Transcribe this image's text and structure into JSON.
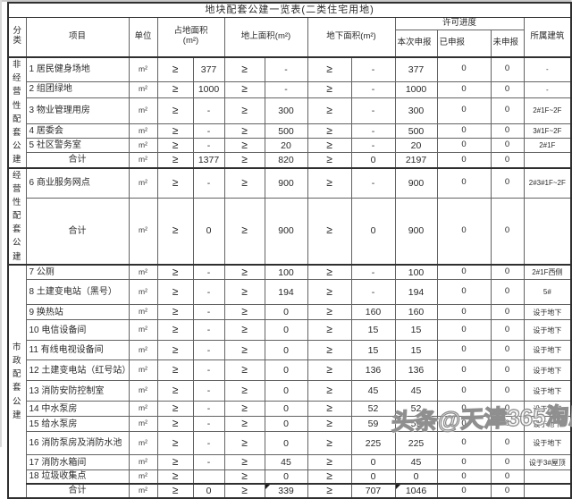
{
  "title": "地块配套公建一览表(二类住宅用地)",
  "watermark": "头条@天津365淘房",
  "header": {
    "category": "分类",
    "project": "项目",
    "unit": "单位",
    "land_area_line1": "占地面积",
    "land_area_line2": "(m²)",
    "above_area": "地上面积(m²)",
    "below_area": "地下面积(m²)",
    "permit_progress": "许可进度",
    "current_declare": "本次申报",
    "declared": "已申报",
    "not_declared": "未申报",
    "building": "所属建筑"
  },
  "sections": [
    {
      "category": "非经营性配套公建",
      "rows": [
        {
          "cells": [
            "1 居民健身场地",
            "m²",
            "≥",
            "377",
            "≥",
            "-",
            "≥",
            "-",
            "377",
            "0",
            "0",
            "-"
          ]
        },
        {
          "cells": [
            "2 组团绿地",
            "m²",
            "≥",
            "1000",
            "≥",
            "-",
            "≥",
            "-",
            "1000",
            "0",
            "0",
            "-"
          ]
        },
        {
          "cells": [
            "3 物业管理用房",
            "m²",
            "≥",
            "-",
            "≥",
            "300",
            "≥",
            "-",
            "300",
            "0",
            "0",
            "2#1F~2F"
          ]
        },
        {
          "cells": [
            "4 居委会",
            "m²",
            "≥",
            "-",
            "≥",
            "500",
            "≥",
            "-",
            "500",
            "0",
            "0",
            "3#1F~2F"
          ]
        },
        {
          "cells": [
            "5 社区警务室",
            "m²",
            "≥",
            "-",
            "≥",
            "20",
            "≥",
            "-",
            "20",
            "0",
            "0",
            "2#1F"
          ]
        },
        {
          "total": true,
          "cells": [
            "合计",
            "m²",
            "≥",
            "1377",
            "≥",
            "820",
            "≥",
            "0",
            "2197",
            "0",
            "0",
            ""
          ]
        }
      ]
    },
    {
      "category": "经营性配套公建",
      "rows": [
        {
          "cells": [
            "6 商业服务网点",
            "m²",
            "≥",
            "-",
            "≥",
            "900",
            "≥",
            "-",
            "900",
            "0",
            "0",
            "2#3#1F~2F"
          ]
        },
        {
          "total": true,
          "cells": [
            "合计",
            "m²",
            "≥",
            "0",
            "≥",
            "900",
            "≥",
            "0",
            "900",
            "0",
            "0",
            ""
          ]
        }
      ]
    },
    {
      "category": "市政配套公建",
      "rows": [
        {
          "cells": [
            "7 公厕",
            "m²",
            "≥",
            "-",
            "≥",
            "100",
            "≥",
            "-",
            "100",
            "0",
            "0",
            "2#1F西侧"
          ]
        },
        {
          "cells": [
            "8 土建变电站（黑号）",
            "m²",
            "≥",
            "-",
            "≥",
            "194",
            "≥",
            "-",
            "194",
            "0",
            "0",
            "5#"
          ]
        },
        {
          "cells": [
            "9 换热站",
            "m²",
            "≥",
            "-",
            "≥",
            "0",
            "≥",
            "160",
            "160",
            "0",
            "0",
            "设于地下"
          ]
        },
        {
          "cells": [
            "10 电信设备间",
            "m²",
            "≥",
            "-",
            "≥",
            "0",
            "≥",
            "15",
            "15",
            "0",
            "0",
            "设于地下"
          ]
        },
        {
          "cells": [
            "11 有线电视设备间",
            "m²",
            "≥",
            "-",
            "≥",
            "0",
            "≥",
            "15",
            "15",
            "0",
            "0",
            "设于地下"
          ]
        },
        {
          "cells": [
            "12 土建变电站（红号站）",
            "m²",
            "≥",
            "-",
            "≥",
            "0",
            "≥",
            "136",
            "136",
            "0",
            "0",
            "设于地下"
          ]
        },
        {
          "cells": [
            "13 消防安防控制室",
            "m²",
            "≥",
            "-",
            "≥",
            "0",
            "≥",
            "45",
            "45",
            "0",
            "0",
            "设于地下"
          ]
        },
        {
          "cells": [
            "14 中水泵房",
            "m²",
            "≥",
            "-",
            "≥",
            "0",
            "≥",
            "52",
            "52",
            "0",
            "0",
            "设于地下"
          ]
        },
        {
          "cells": [
            "15 给水泵房",
            "m²",
            "≥",
            "-",
            "≥",
            "0",
            "≥",
            "59",
            "59",
            "0",
            "0",
            "设于地下"
          ]
        },
        {
          "cells": [
            "16 消防泵房及消防水池",
            "m²",
            "≥",
            "-",
            "≥",
            "0",
            "≥",
            "225",
            "225",
            "0",
            "0",
            "设于地下"
          ]
        },
        {
          "cells": [
            "17 消防水箱间",
            "m²",
            "≥",
            "-",
            "≥",
            "45",
            "≥",
            "0",
            "45",
            "0",
            "0",
            "设于3#屋顶"
          ]
        },
        {
          "cells": [
            "18 垃圾收集点",
            "m²",
            "≥",
            "",
            "≥",
            "0",
            "≥",
            "0",
            "0",
            "0",
            "0",
            ""
          ]
        },
        {
          "total": true,
          "thick_top": true,
          "marks": [
            5,
            8
          ],
          "cells": [
            "合计",
            "m²",
            "≥",
            "0",
            "≥",
            "339",
            "≥",
            "707",
            "1046",
            "0",
            "0",
            ""
          ]
        }
      ]
    }
  ]
}
